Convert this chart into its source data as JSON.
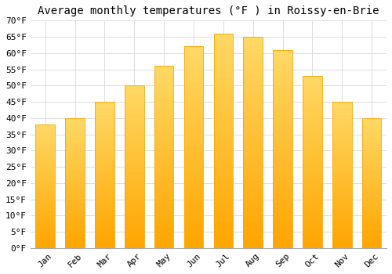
{
  "title": "Average monthly temperatures (°F ) in Roissy-en-Brie",
  "months": [
    "Jan",
    "Feb",
    "Mar",
    "Apr",
    "May",
    "Jun",
    "Jul",
    "Aug",
    "Sep",
    "Oct",
    "Nov",
    "Dec"
  ],
  "values": [
    38,
    40,
    45,
    50,
    56,
    62,
    66,
    65,
    61,
    53,
    45,
    40
  ],
  "bar_color_top": "#FFD966",
  "bar_color_bottom": "#FFA500",
  "background_color": "#FFFFFF",
  "grid_color": "#DDDDDD",
  "ylim": [
    0,
    70
  ],
  "yticks": [
    0,
    5,
    10,
    15,
    20,
    25,
    30,
    35,
    40,
    45,
    50,
    55,
    60,
    65,
    70
  ],
  "title_fontsize": 10,
  "tick_fontsize": 8,
  "title_font": "monospace"
}
